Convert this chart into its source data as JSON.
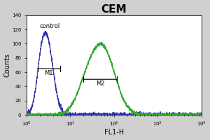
{
  "title": "CEM",
  "title_fontsize": 11,
  "title_fontweight": "bold",
  "xlabel": "FL1-H",
  "ylabel": "Counts",
  "xlabel_fontsize": 7,
  "ylabel_fontsize": 7,
  "xlim_log": [
    1.0,
    10000.0
  ],
  "ylim": [
    0,
    140
  ],
  "yticks": [
    0,
    20,
    40,
    60,
    80,
    100,
    120,
    140
  ],
  "control_label": "control",
  "control_color": "#3333aa",
  "sample_color": "#33aa33",
  "m1_label": "M1",
  "m2_label": "M2",
  "bg_color": "#ffffff",
  "control_peak_x": 2.8,
  "control_peak_y": 112,
  "sample_peak_x": 55,
  "sample_peak_y": 93,
  "m1_x1": 1.6,
  "m1_x2": 6.5,
  "m1_y": 65,
  "m2_x1": 18,
  "m2_x2": 130,
  "m2_y": 50,
  "figwidth": 3.0,
  "figheight": 2.0,
  "dpi": 100
}
